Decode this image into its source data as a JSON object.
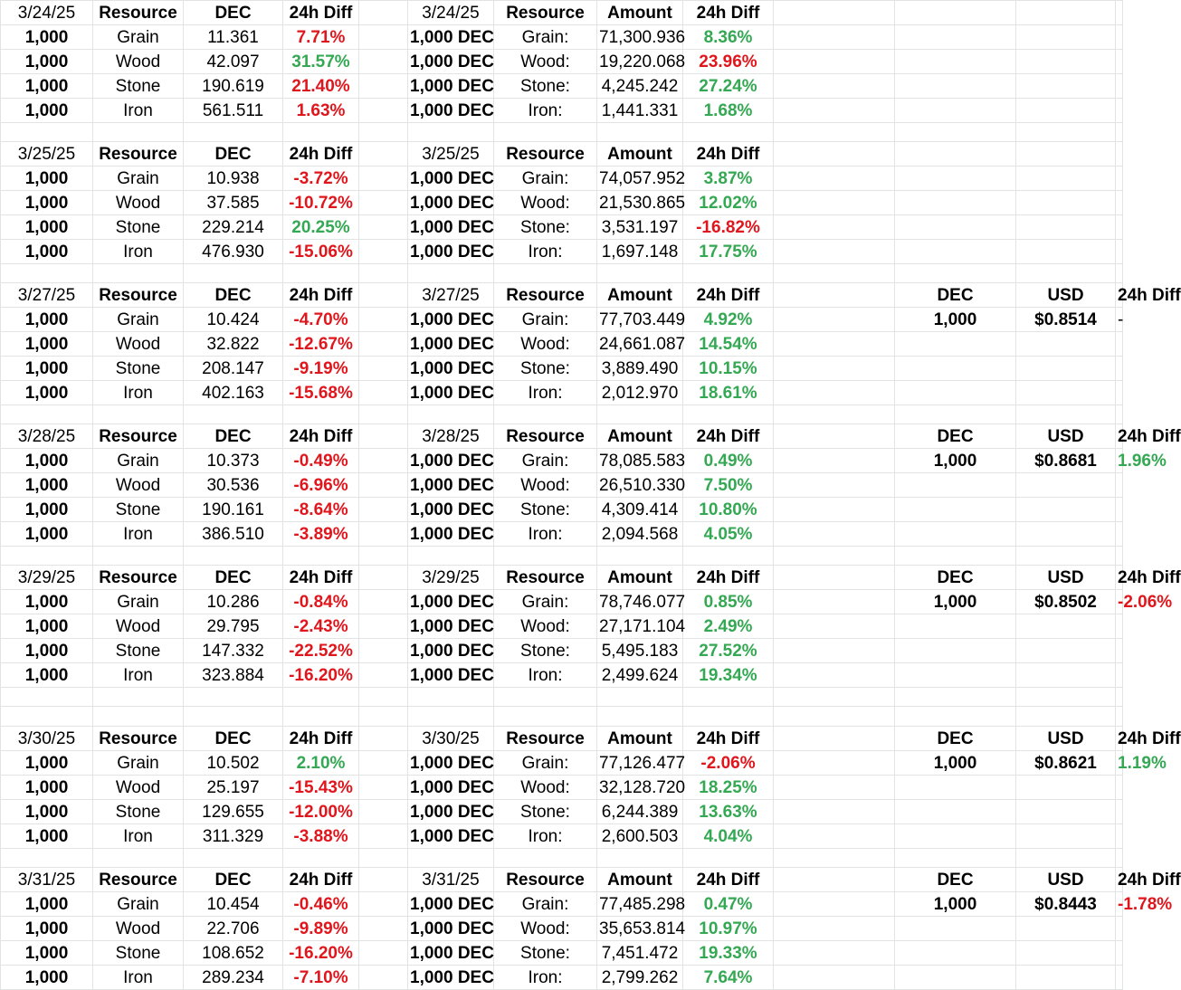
{
  "colors": {
    "positive": "#34a853",
    "negative": "#e0161d",
    "gridline": "#e2e3e3"
  },
  "blocks": [
    {
      "date": "3/24/25",
      "left_headers": [
        "Resource",
        "DEC",
        "24h Diff"
      ],
      "right_headers": [
        "Resource",
        "Amount",
        "24h Diff"
      ],
      "usd_headers": null,
      "rows": [
        {
          "qty": "1,000",
          "resource": "Grain",
          "dec": "11.361",
          "diff": "7.71%",
          "diff_sign": "neg",
          "amt_qty": "1,000 DEC",
          "amt_res": "Grain:",
          "amount": "71,300.936",
          "amt_diff": "8.36%",
          "amt_sign": "pos",
          "usd_dec": "",
          "usd": "",
          "usd_diff": "",
          "usd_sign": ""
        },
        {
          "qty": "1,000",
          "resource": "Wood",
          "dec": "42.097",
          "diff": "31.57%",
          "diff_sign": "pos",
          "amt_qty": "1,000 DEC",
          "amt_res": "Wood:",
          "amount": "19,220.068",
          "amt_diff": "23.96%",
          "amt_sign": "neg",
          "usd_dec": "",
          "usd": "",
          "usd_diff": "",
          "usd_sign": ""
        },
        {
          "qty": "1,000",
          "resource": "Stone",
          "dec": "190.619",
          "diff": "21.40%",
          "diff_sign": "neg",
          "amt_qty": "1,000 DEC",
          "amt_res": "Stone:",
          "amount": "4,245.242",
          "amt_diff": "27.24%",
          "amt_sign": "pos",
          "usd_dec": "",
          "usd": "",
          "usd_diff": "",
          "usd_sign": ""
        },
        {
          "qty": "1,000",
          "resource": "Iron",
          "dec": "561.511",
          "diff": "1.63%",
          "diff_sign": "neg",
          "amt_qty": "1,000 DEC",
          "amt_res": "Iron:",
          "amount": "1,441.331",
          "amt_diff": "1.68%",
          "amt_sign": "pos",
          "usd_dec": "",
          "usd": "",
          "usd_diff": "",
          "usd_sign": ""
        }
      ]
    },
    {
      "date": "3/25/25",
      "left_headers": [
        "Resource",
        "DEC",
        "24h Diff"
      ],
      "right_headers": [
        "Resource",
        "Amount",
        "24h Diff"
      ],
      "usd_headers": null,
      "rows": [
        {
          "qty": "1,000",
          "resource": "Grain",
          "dec": "10.938",
          "diff": "-3.72%",
          "diff_sign": "neg",
          "amt_qty": "1,000 DEC",
          "amt_res": "Grain:",
          "amount": "74,057.952",
          "amt_diff": "3.87%",
          "amt_sign": "pos",
          "usd_dec": "",
          "usd": "",
          "usd_diff": "",
          "usd_sign": ""
        },
        {
          "qty": "1,000",
          "resource": "Wood",
          "dec": "37.585",
          "diff": "-10.72%",
          "diff_sign": "neg",
          "amt_qty": "1,000 DEC",
          "amt_res": "Wood:",
          "amount": "21,530.865",
          "amt_diff": "12.02%",
          "amt_sign": "pos",
          "usd_dec": "",
          "usd": "",
          "usd_diff": "",
          "usd_sign": ""
        },
        {
          "qty": "1,000",
          "resource": "Stone",
          "dec": "229.214",
          "diff": "20.25%",
          "diff_sign": "pos",
          "amt_qty": "1,000 DEC",
          "amt_res": "Stone:",
          "amount": "3,531.197",
          "amt_diff": "-16.82%",
          "amt_sign": "neg",
          "usd_dec": "",
          "usd": "",
          "usd_diff": "",
          "usd_sign": ""
        },
        {
          "qty": "1,000",
          "resource": "Iron",
          "dec": "476.930",
          "diff": "-15.06%",
          "diff_sign": "neg",
          "amt_qty": "1,000 DEC",
          "amt_res": "Iron:",
          "amount": "1,697.148",
          "amt_diff": "17.75%",
          "amt_sign": "pos",
          "usd_dec": "",
          "usd": "",
          "usd_diff": "",
          "usd_sign": ""
        }
      ]
    },
    {
      "date": "3/27/25",
      "left_headers": [
        "Resource",
        "DEC",
        "24h Diff"
      ],
      "right_headers": [
        "Resource",
        "Amount",
        "24h Diff"
      ],
      "usd_headers": [
        "DEC",
        "USD",
        "24h Diff"
      ],
      "rows": [
        {
          "qty": "1,000",
          "resource": "Grain",
          "dec": "10.424",
          "diff": "-4.70%",
          "diff_sign": "neg",
          "amt_qty": "1,000 DEC",
          "amt_res": "Grain:",
          "amount": "77,703.449",
          "amt_diff": "4.92%",
          "amt_sign": "pos",
          "usd_dec": "1,000",
          "usd": "$0.8514",
          "usd_diff": "-",
          "usd_sign": "plain"
        },
        {
          "qty": "1,000",
          "resource": "Wood",
          "dec": "32.822",
          "diff": "-12.67%",
          "diff_sign": "neg",
          "amt_qty": "1,000 DEC",
          "amt_res": "Wood:",
          "amount": "24,661.087",
          "amt_diff": "14.54%",
          "amt_sign": "pos",
          "usd_dec": "",
          "usd": "",
          "usd_diff": "",
          "usd_sign": ""
        },
        {
          "qty": "1,000",
          "resource": "Stone",
          "dec": "208.147",
          "diff": "-9.19%",
          "diff_sign": "neg",
          "amt_qty": "1,000 DEC",
          "amt_res": "Stone:",
          "amount": "3,889.490",
          "amt_diff": "10.15%",
          "amt_sign": "pos",
          "usd_dec": "",
          "usd": "",
          "usd_diff": "",
          "usd_sign": ""
        },
        {
          "qty": "1,000",
          "resource": "Iron",
          "dec": "402.163",
          "diff": "-15.68%",
          "diff_sign": "neg",
          "amt_qty": "1,000 DEC",
          "amt_res": "Iron:",
          "amount": "2,012.970",
          "amt_diff": "18.61%",
          "amt_sign": "pos",
          "usd_dec": "",
          "usd": "",
          "usd_diff": "",
          "usd_sign": ""
        }
      ]
    },
    {
      "date": "3/28/25",
      "left_headers": [
        "Resource",
        "DEC",
        "24h Diff"
      ],
      "right_headers": [
        "Resource",
        "Amount",
        "24h Diff"
      ],
      "usd_headers": [
        "DEC",
        "USD",
        "24h Diff"
      ],
      "rows": [
        {
          "qty": "1,000",
          "resource": "Grain",
          "dec": "10.373",
          "diff": "-0.49%",
          "diff_sign": "neg",
          "amt_qty": "1,000 DEC",
          "amt_res": "Grain:",
          "amount": "78,085.583",
          "amt_diff": "0.49%",
          "amt_sign": "pos",
          "usd_dec": "1,000",
          "usd": "$0.8681",
          "usd_diff": "1.96%",
          "usd_sign": "pos"
        },
        {
          "qty": "1,000",
          "resource": "Wood",
          "dec": "30.536",
          "diff": "-6.96%",
          "diff_sign": "neg",
          "amt_qty": "1,000 DEC",
          "amt_res": "Wood:",
          "amount": "26,510.330",
          "amt_diff": "7.50%",
          "amt_sign": "pos",
          "usd_dec": "",
          "usd": "",
          "usd_diff": "",
          "usd_sign": ""
        },
        {
          "qty": "1,000",
          "resource": "Stone",
          "dec": "190.161",
          "diff": "-8.64%",
          "diff_sign": "neg",
          "amt_qty": "1,000 DEC",
          "amt_res": "Stone:",
          "amount": "4,309.414",
          "amt_diff": "10.80%",
          "amt_sign": "pos",
          "usd_dec": "",
          "usd": "",
          "usd_diff": "",
          "usd_sign": ""
        },
        {
          "qty": "1,000",
          "resource": "Iron",
          "dec": "386.510",
          "diff": "-3.89%",
          "diff_sign": "neg",
          "amt_qty": "1,000 DEC",
          "amt_res": "Iron:",
          "amount": "2,094.568",
          "amt_diff": "4.05%",
          "amt_sign": "pos",
          "usd_dec": "",
          "usd": "",
          "usd_diff": "",
          "usd_sign": ""
        }
      ]
    },
    {
      "date": "3/29/25",
      "left_headers": [
        "Resource",
        "DEC",
        "24h Diff"
      ],
      "right_headers": [
        "Resource",
        "Amount",
        "24h Diff"
      ],
      "usd_headers": [
        "DEC",
        "USD",
        "24h Diff"
      ],
      "rows": [
        {
          "qty": "1,000",
          "resource": "Grain",
          "dec": "10.286",
          "diff": "-0.84%",
          "diff_sign": "neg",
          "amt_qty": "1,000 DEC",
          "amt_res": "Grain:",
          "amount": "78,746.077",
          "amt_diff": "0.85%",
          "amt_sign": "pos",
          "usd_dec": "1,000",
          "usd": "$0.8502",
          "usd_diff": "-2.06%",
          "usd_sign": "neg"
        },
        {
          "qty": "1,000",
          "resource": "Wood",
          "dec": "29.795",
          "diff": "-2.43%",
          "diff_sign": "neg",
          "amt_qty": "1,000 DEC",
          "amt_res": "Wood:",
          "amount": "27,171.104",
          "amt_diff": "2.49%",
          "amt_sign": "pos",
          "usd_dec": "",
          "usd": "",
          "usd_diff": "",
          "usd_sign": ""
        },
        {
          "qty": "1,000",
          "resource": "Stone",
          "dec": "147.332",
          "diff": "-22.52%",
          "diff_sign": "neg",
          "amt_qty": "1,000 DEC",
          "amt_res": "Stone:",
          "amount": "5,495.183",
          "amt_diff": "27.52%",
          "amt_sign": "pos",
          "usd_dec": "",
          "usd": "",
          "usd_diff": "",
          "usd_sign": ""
        },
        {
          "qty": "1,000",
          "resource": "Iron",
          "dec": "323.884",
          "diff": "-16.20%",
          "diff_sign": "neg",
          "amt_qty": "1,000 DEC",
          "amt_res": "Iron:",
          "amount": "2,499.624",
          "amt_diff": "19.34%",
          "amt_sign": "pos",
          "usd_dec": "",
          "usd": "",
          "usd_diff": "",
          "usd_sign": ""
        }
      ]
    },
    {
      "date": "3/30/25",
      "left_headers": [
        "Resource",
        "DEC",
        "24h Diff"
      ],
      "right_headers": [
        "Resource",
        "Amount",
        "24h Diff"
      ],
      "usd_headers": [
        "DEC",
        "USD",
        "24h Diff"
      ],
      "rows": [
        {
          "qty": "1,000",
          "resource": "Grain",
          "dec": "10.502",
          "diff": "2.10%",
          "diff_sign": "pos",
          "amt_qty": "1,000 DEC",
          "amt_res": "Grain:",
          "amount": "77,126.477",
          "amt_diff": "-2.06%",
          "amt_sign": "neg",
          "usd_dec": "1,000",
          "usd": "$0.8621",
          "usd_diff": "1.19%",
          "usd_sign": "pos"
        },
        {
          "qty": "1,000",
          "resource": "Wood",
          "dec": "25.197",
          "diff": "-15.43%",
          "diff_sign": "neg",
          "amt_qty": "1,000 DEC",
          "amt_res": "Wood:",
          "amount": "32,128.720",
          "amt_diff": "18.25%",
          "amt_sign": "pos",
          "usd_dec": "",
          "usd": "",
          "usd_diff": "",
          "usd_sign": ""
        },
        {
          "qty": "1,000",
          "resource": "Stone",
          "dec": "129.655",
          "diff": "-12.00%",
          "diff_sign": "neg",
          "amt_qty": "1,000 DEC",
          "amt_res": "Stone:",
          "amount": "6,244.389",
          "amt_diff": "13.63%",
          "amt_sign": "pos",
          "usd_dec": "",
          "usd": "",
          "usd_diff": "",
          "usd_sign": ""
        },
        {
          "qty": "1,000",
          "resource": "Iron",
          "dec": "311.329",
          "diff": "-3.88%",
          "diff_sign": "neg",
          "amt_qty": "1,000 DEC",
          "amt_res": "Iron:",
          "amount": "2,600.503",
          "amt_diff": "4.04%",
          "amt_sign": "pos",
          "usd_dec": "",
          "usd": "",
          "usd_diff": "",
          "usd_sign": ""
        }
      ]
    },
    {
      "date": "3/31/25",
      "left_headers": [
        "Resource",
        "DEC",
        "24h Diff"
      ],
      "right_headers": [
        "Resource",
        "Amount",
        "24h Diff"
      ],
      "usd_headers": [
        "DEC",
        "USD",
        "24h Diff"
      ],
      "rows": [
        {
          "qty": "1,000",
          "resource": "Grain",
          "dec": "10.454",
          "diff": "-0.46%",
          "diff_sign": "neg",
          "amt_qty": "1,000 DEC",
          "amt_res": "Grain:",
          "amount": "77,485.298",
          "amt_diff": "0.47%",
          "amt_sign": "pos",
          "usd_dec": "1,000",
          "usd": "$0.8443",
          "usd_diff": "-1.78%",
          "usd_sign": "neg"
        },
        {
          "qty": "1,000",
          "resource": "Wood",
          "dec": "22.706",
          "diff": "-9.89%",
          "diff_sign": "neg",
          "amt_qty": "1,000 DEC",
          "amt_res": "Wood:",
          "amount": "35,653.814",
          "amt_diff": "10.97%",
          "amt_sign": "pos",
          "usd_dec": "",
          "usd": "",
          "usd_diff": "",
          "usd_sign": ""
        },
        {
          "qty": "1,000",
          "resource": "Stone",
          "dec": "108.652",
          "diff": "-16.20%",
          "diff_sign": "neg",
          "amt_qty": "1,000 DEC",
          "amt_res": "Stone:",
          "amount": "7,451.472",
          "amt_diff": "19.33%",
          "amt_sign": "pos",
          "usd_dec": "",
          "usd": "",
          "usd_diff": "",
          "usd_sign": ""
        },
        {
          "qty": "1,000",
          "resource": "Iron",
          "dec": "289.234",
          "diff": "-7.10%",
          "diff_sign": "neg",
          "amt_qty": "1,000 DEC",
          "amt_res": "Iron:",
          "amount": "2,799.262",
          "amt_diff": "7.64%",
          "amt_sign": "pos",
          "usd_dec": "",
          "usd": "",
          "usd_diff": "",
          "usd_sign": ""
        }
      ]
    }
  ]
}
